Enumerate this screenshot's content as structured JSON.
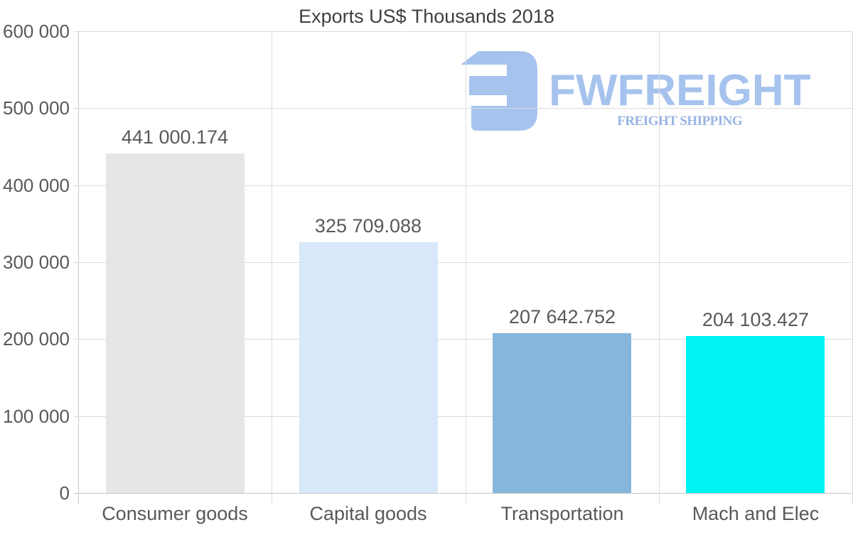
{
  "title": "Exports US$ Thousands 2018",
  "logo": {
    "name": "FWFREIGHT",
    "subtitle": "FREIGHT SHIPPING",
    "color": "#a6c3ee",
    "subtitle_color": "#97b4e4"
  },
  "chart_data": {
    "type": "bar",
    "title": "Exports US$ Thousands 2018",
    "categories": [
      "Consumer goods",
      "Capital goods",
      "Transportation",
      "Mach and Elec"
    ],
    "values": [
      441000.174,
      325709.088,
      207642.752,
      204103.427
    ],
    "value_labels": [
      "441 000.174",
      "325 709.088",
      "207 642.752",
      "204 103.427"
    ],
    "bar_colors": [
      "#e6e6e6",
      "#d7e8f8",
      "#86b6db",
      "#00f2f2"
    ],
    "xlabel": "",
    "ylabel": "",
    "ylim": [
      0,
      600000
    ],
    "ytick_step": 100000,
    "ytick_labels": [
      "0",
      "100 000",
      "200 000",
      "300 000",
      "400 000",
      "500 000",
      "600 000"
    ],
    "grid": true,
    "legend_position": "none"
  }
}
